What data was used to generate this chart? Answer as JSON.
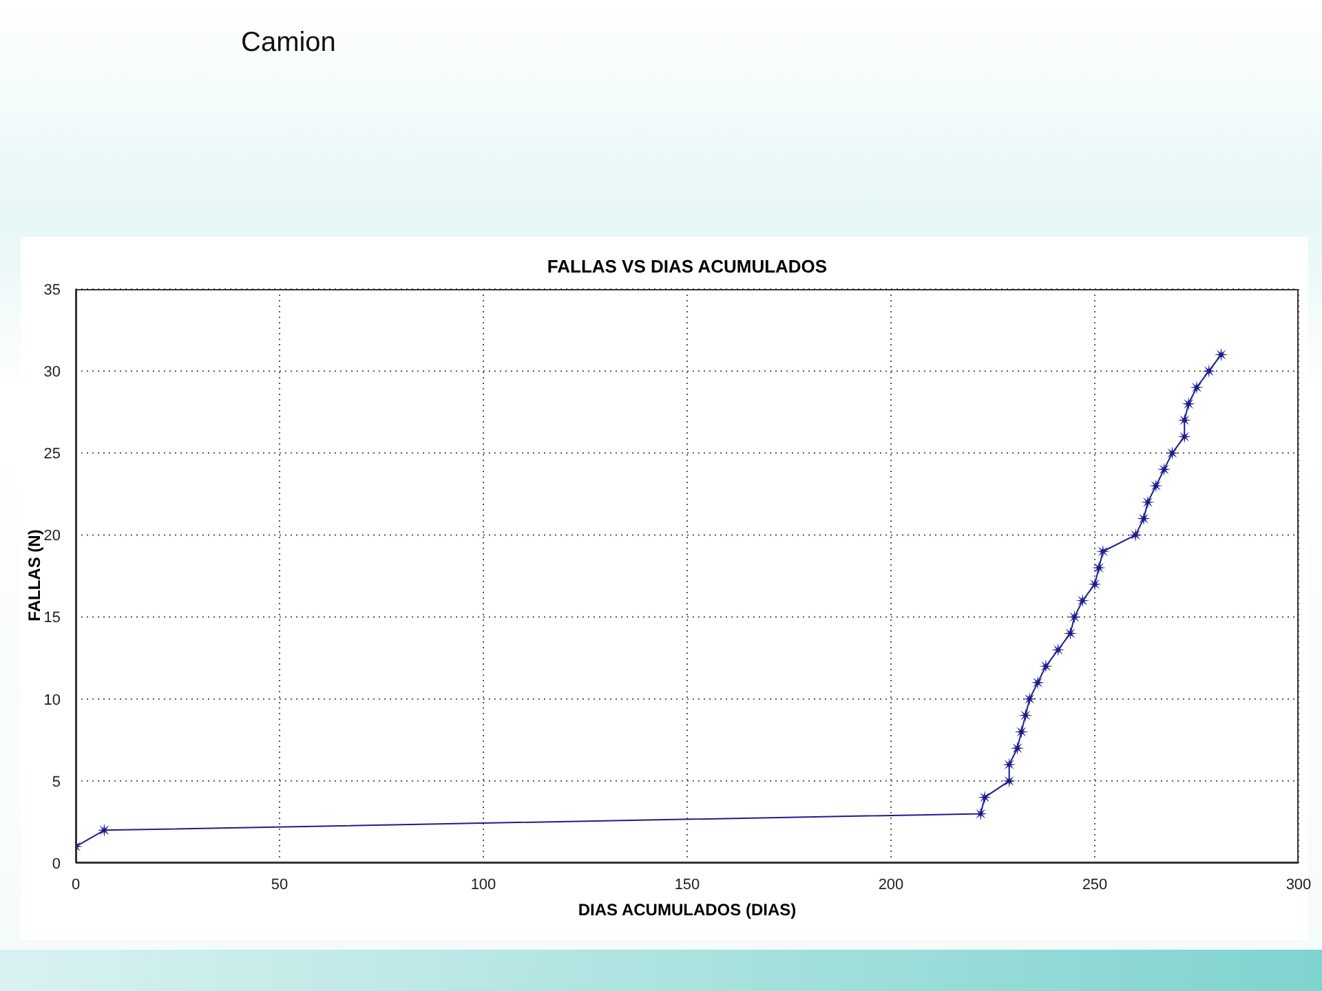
{
  "chart_data": {
    "type": "line",
    "title": "FALLAS VS DIAS ACUMULADOS",
    "xlabel": "DIAS ACUMULADOS (DIAS)",
    "ylabel": "FALLAS (N)",
    "annotations": [
      "Camion"
    ],
    "x": [
      0,
      7,
      222,
      223,
      229,
      229,
      231,
      232,
      233,
      234,
      236,
      238,
      241,
      244,
      245,
      247,
      250,
      251,
      252,
      260,
      262,
      263,
      265,
      267,
      269,
      272,
      272,
      273,
      275,
      278,
      281
    ],
    "values": [
      1,
      2,
      3,
      4,
      5,
      6,
      7,
      8,
      9,
      10,
      11,
      12,
      13,
      14,
      15,
      16,
      17,
      18,
      19,
      20,
      21,
      22,
      23,
      24,
      25,
      26,
      27,
      28,
      29,
      30,
      31
    ],
    "color": "#1c1c8c",
    "marker": "star",
    "line_style": "solid",
    "xlim": [
      0,
      300
    ],
    "xticks": [
      0,
      50,
      100,
      150,
      200,
      250,
      300
    ],
    "ylim": [
      0,
      35
    ],
    "yticks": [
      0,
      5,
      10,
      15,
      20,
      25,
      30,
      35
    ],
    "grid": true
  }
}
